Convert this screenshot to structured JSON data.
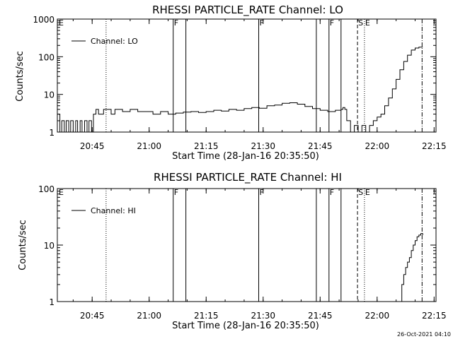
{
  "footer_timestamp": "26-Oct-2021 04:10",
  "chart_data": [
    {
      "type": "line",
      "title": "RHESSI PARTICLE_RATE Channel: LO",
      "xlabel": "Start Time (28-Jan-16 20:35:50)",
      "ylabel": "Counts/sec",
      "y_scale": "log",
      "xlim": [
        "20:35:50",
        "22:15:30"
      ],
      "ylim": [
        1,
        1000
      ],
      "x_tick_labels": [
        "20:45",
        "21:00",
        "21:15",
        "21:30",
        "21:45",
        "22:00",
        "22:15"
      ],
      "y_tick_labels": [
        "1",
        "10",
        "100",
        "1000"
      ],
      "legend": {
        "label": "Channel: LO",
        "placement": "top-left"
      },
      "grid": false,
      "flags": [
        {
          "time": "20:35:50",
          "text": "E"
        },
        {
          "time": "21:06:20",
          "text": "F"
        },
        {
          "time": "21:28:50",
          "text": "F"
        },
        {
          "time": "21:47:20",
          "text": "F"
        },
        {
          "time": "21:54:50",
          "text": "S"
        },
        {
          "time": "21:56:40",
          "text": "E"
        }
      ],
      "series": [
        {
          "name": "Channel: LO",
          "time": [
            "20:35:50",
            "20:36:30",
            "20:37:00",
            "20:37:40",
            "20:38:10",
            "20:38:50",
            "20:39:20",
            "20:40:00",
            "20:40:40",
            "20:41:10",
            "20:41:50",
            "20:42:20",
            "20:43:00",
            "20:43:40",
            "20:44:10",
            "20:44:50",
            "20:45:20",
            "20:46:00",
            "20:46:40",
            "20:47:20",
            "20:48:00",
            "20:49:00",
            "20:50:00",
            "20:51:00",
            "20:53:00",
            "20:55:00",
            "20:57:00",
            "20:59:00",
            "21:01:00",
            "21:03:00",
            "21:05:00",
            "21:07:00",
            "21:09:00",
            "21:11:00",
            "21:13:00",
            "21:15:00",
            "21:17:00",
            "21:19:00",
            "21:21:00",
            "21:23:00",
            "21:25:00",
            "21:27:00",
            "21:29:00",
            "21:31:00",
            "21:33:00",
            "21:35:00",
            "21:37:00",
            "21:39:00",
            "21:41:00",
            "21:43:00",
            "21:45:00",
            "21:47:00",
            "21:49:00",
            "21:50:30",
            "21:51:00",
            "21:51:30",
            "21:52:00",
            "21:53:00",
            "21:54:00",
            "21:55:00",
            "21:56:00",
            "21:57:00",
            "21:58:00",
            "21:59:00",
            "22:00:00",
            "22:01:00",
            "22:02:00",
            "22:03:00",
            "22:04:00",
            "22:05:00",
            "22:06:00",
            "22:07:00",
            "22:08:00",
            "22:09:00",
            "22:10:00",
            "22:11:00",
            "22:12:00"
          ],
          "values": [
            3,
            1,
            2,
            1,
            2,
            1,
            2,
            1,
            2,
            1,
            2,
            1,
            2,
            1,
            2,
            1,
            3,
            4,
            3,
            3,
            4,
            4,
            3,
            4,
            3.5,
            4,
            3.5,
            3.5,
            3,
            3.5,
            3,
            3.2,
            3.4,
            3.5,
            3.3,
            3.5,
            3.8,
            3.6,
            4,
            3.8,
            4.2,
            4.5,
            4.3,
            5,
            5.2,
            5.8,
            6,
            5.5,
            4.8,
            4.2,
            3.8,
            3.5,
            3.8,
            4,
            4.5,
            4,
            2,
            1,
            1.5,
            1,
            1.5,
            1,
            1.5,
            2,
            2.5,
            3,
            5,
            8,
            14,
            25,
            45,
            75,
            110,
            150,
            170,
            180,
            180
          ]
        }
      ]
    },
    {
      "type": "line",
      "title": "RHESSI PARTICLE_RATE Channel: HI",
      "xlabel": "Start Time (28-Jan-16 20:35:50)",
      "ylabel": "Counts/sec",
      "y_scale": "log",
      "xlim": [
        "20:35:50",
        "22:15:30"
      ],
      "ylim": [
        1,
        100
      ],
      "x_tick_labels": [
        "20:45",
        "21:00",
        "21:15",
        "21:30",
        "21:45",
        "22:00",
        "22:15"
      ],
      "y_tick_labels": [
        "1",
        "10",
        "100"
      ],
      "legend": {
        "label": "Channel: HI",
        "placement": "top-left"
      },
      "grid": false,
      "flags": [
        {
          "time": "20:35:50",
          "text": "E"
        },
        {
          "time": "21:06:20",
          "text": "F"
        },
        {
          "time": "21:28:50",
          "text": "F"
        },
        {
          "time": "21:47:20",
          "text": "F"
        },
        {
          "time": "21:54:50",
          "text": "S"
        },
        {
          "time": "21:56:40",
          "text": "E"
        }
      ],
      "series": [
        {
          "name": "Channel: HI",
          "time": [
            "22:06:00",
            "22:06:30",
            "22:07:00",
            "22:07:30",
            "22:08:00",
            "22:08:30",
            "22:09:00",
            "22:09:30",
            "22:10:00",
            "22:10:30",
            "22:11:00",
            "22:11:30",
            "22:12:00"
          ],
          "values": [
            1,
            2,
            3,
            4,
            5,
            6,
            8,
            10,
            12,
            14,
            15,
            16,
            15
          ]
        }
      ]
    }
  ]
}
